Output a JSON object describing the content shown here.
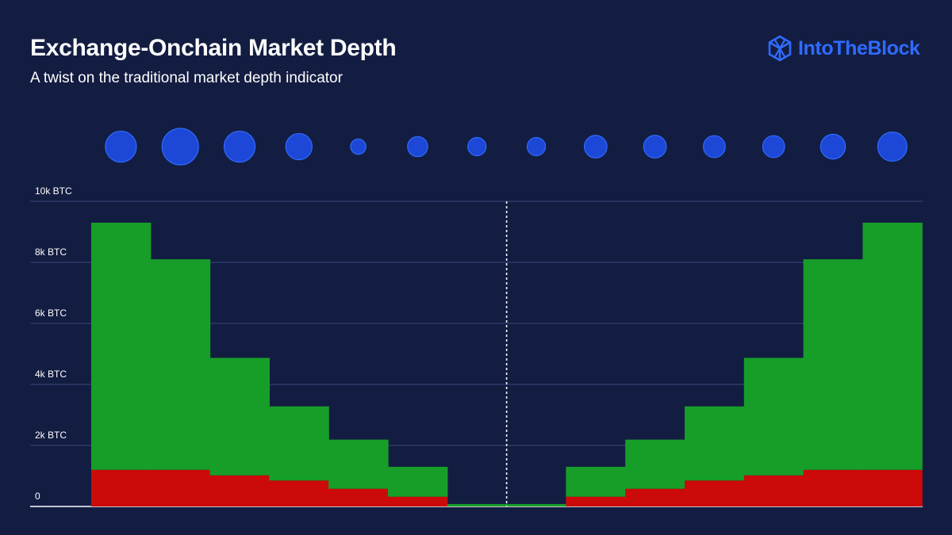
{
  "header": {
    "title": "Exchange-Onchain Market Depth",
    "subtitle": "A twist on the traditional market depth indicator"
  },
  "brand": {
    "name": "IntoTheBlock",
    "icon": "hexagon-cube-logo-icon",
    "color": "#2f6bff"
  },
  "chart_data": {
    "type": "bar",
    "title": "Exchange-Onchain Market Depth",
    "subtitle": "A twist on the traditional market depth indicator",
    "xlabel": "",
    "ylabel": "",
    "ylim": [
      0,
      10000
    ],
    "yticks": [
      {
        "value": 0,
        "label": "0"
      },
      {
        "value": 2000,
        "label": "2k BTC"
      },
      {
        "value": 4000,
        "label": "4k BTC"
      },
      {
        "value": 6000,
        "label": "6k BTC"
      },
      {
        "value": 8000,
        "label": "8k BTC"
      },
      {
        "value": 10000,
        "label": "10k BTC"
      }
    ],
    "grid": true,
    "stacked": true,
    "center_divider": true,
    "bins": 14,
    "series": [
      {
        "color": "#cc0a0a",
        "values": [
          1200,
          1200,
          1020,
          850,
          580,
          320,
          0,
          0,
          320,
          580,
          850,
          1020,
          1200,
          1200
        ]
      },
      {
        "color": "#179e28",
        "values": [
          8100,
          6900,
          3850,
          2430,
          1610,
          980,
          80,
          80,
          980,
          1610,
          2430,
          3850,
          6900,
          8100
        ]
      }
    ],
    "bubbles": {
      "color": "#1d47d6",
      "stroke": "#2f6bff",
      "values": [
        0.85,
        1.0,
        0.85,
        0.72,
        0.42,
        0.55,
        0.5,
        0.5,
        0.62,
        0.62,
        0.6,
        0.6,
        0.68,
        0.8
      ]
    }
  }
}
